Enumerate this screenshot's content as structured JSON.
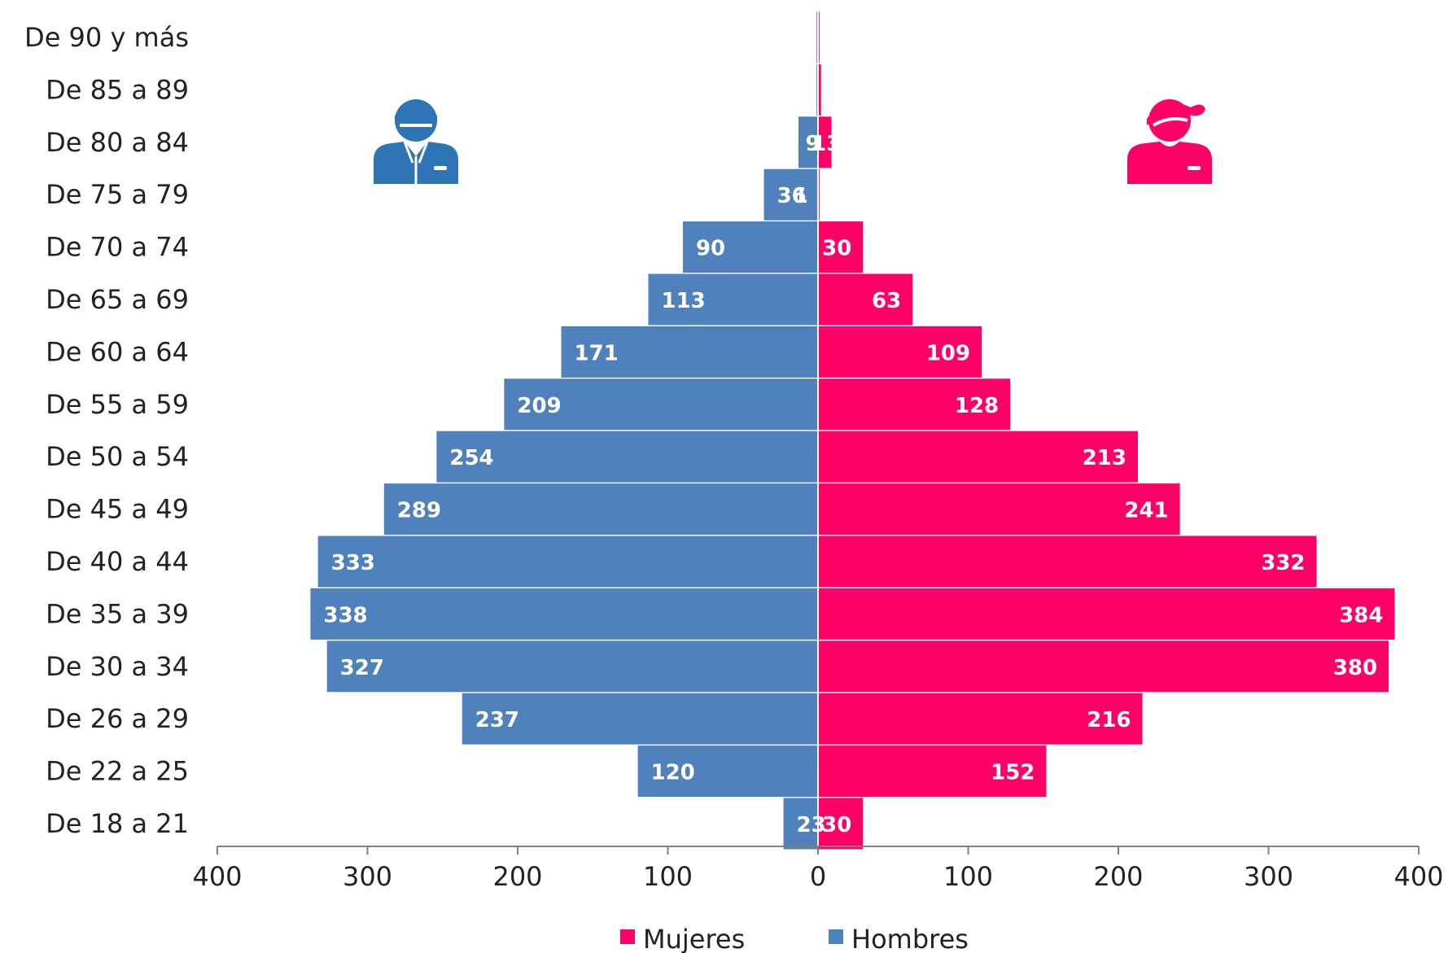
{
  "chart_data": {
    "type": "bar",
    "orientation": "horizontal",
    "layout": "population-pyramid",
    "categories": [
      "De 18 a 21",
      "De 22 a 25",
      "De 26 a 29",
      "De 30 a 34",
      "De 35 a 39",
      "De 40 a 44",
      "De 45 a 49",
      "De 50 a 54",
      "De 55 a 59",
      "De 60 a 64",
      "De 65 a 69",
      "De 70 a 74",
      "De 75 a 79",
      "De 80 a 84",
      "De 85 a 89",
      "De 90 y más"
    ],
    "series": [
      {
        "name": "Mujeres",
        "side": "right",
        "color": "#ff0066",
        "icon": "woman-icon",
        "values": [
          30,
          152,
          216,
          380,
          384,
          332,
          241,
          213,
          128,
          109,
          63,
          30,
          1,
          9,
          2,
          1
        ],
        "labels": [
          "30",
          "152",
          "216",
          "380",
          "384",
          "332",
          "241",
          "213",
          "128",
          "109",
          "63",
          "30",
          "1",
          "9",
          "",
          ""
        ]
      },
      {
        "name": "Hombres",
        "side": "left",
        "color": "#4f81bd",
        "icon": "man-icon",
        "values": [
          23,
          120,
          237,
          327,
          338,
          333,
          289,
          254,
          209,
          171,
          113,
          90,
          36,
          13,
          1,
          1
        ],
        "labels": [
          "23",
          "120",
          "237",
          "327",
          "338",
          "333",
          "289",
          "254",
          "209",
          "171",
          "113",
          "90",
          "36",
          "13",
          "",
          ""
        ]
      }
    ],
    "xlim": [
      -400,
      400
    ],
    "ticks": [
      -400,
      -300,
      -200,
      -100,
      0,
      100,
      200,
      300,
      400
    ],
    "tick_labels": [
      "400",
      "300",
      "200",
      "100",
      "0",
      "100",
      "200",
      "300",
      "400"
    ],
    "legend": {
      "placement": "bottom",
      "items": [
        "Mujeres",
        "Hombres"
      ]
    },
    "grid": false
  }
}
